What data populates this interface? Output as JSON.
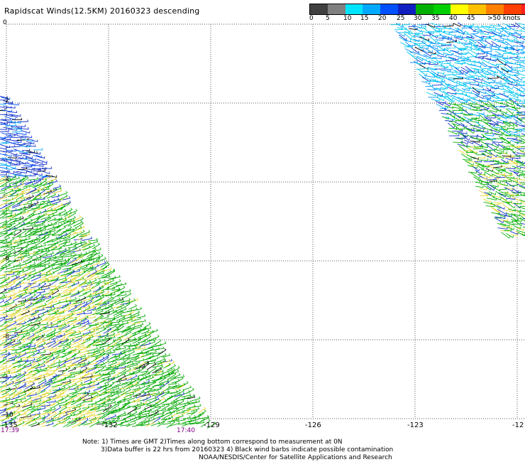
{
  "title": "Rapidscat Winds(12.5KM) 20160323 descending",
  "legend": {
    "colors": [
      "#404040",
      "#808080",
      "#00e5ff",
      "#00aaff",
      "#0050ff",
      "#1020c0",
      "#00b000",
      "#00d000",
      "#ffff00",
      "#ffc000",
      "#ff8000",
      "#ff4000",
      "#ff2020",
      "#e00000",
      "#a05020",
      "#603010",
      "#ff00ff",
      "#c000ff",
      "#8000c0",
      "#400080"
    ],
    "labels": [
      "0",
      "5",
      "10",
      "15",
      "20",
      "25",
      "30",
      "35",
      "40",
      "45",
      ">50 knots"
    ]
  },
  "map": {
    "lon_labels": [
      "-135",
      "-132",
      "-129",
      "-126",
      "-123",
      "-12"
    ],
    "lat_labels": [
      "0",
      "-2",
      "-4",
      "-6",
      "-8",
      "-10"
    ]
  },
  "times": [
    "17:39",
    "17:40"
  ],
  "notes": [
    "Note: 1) Times are GMT 2)Times along bottom correspond to measurement at 0N",
    "3)Data buffer is 22 hrs from 20160323 4) Black wind barbs indicate possible contamination",
    "NOAA/NESDIS/Center for Satellite Applications and Research"
  ]
}
